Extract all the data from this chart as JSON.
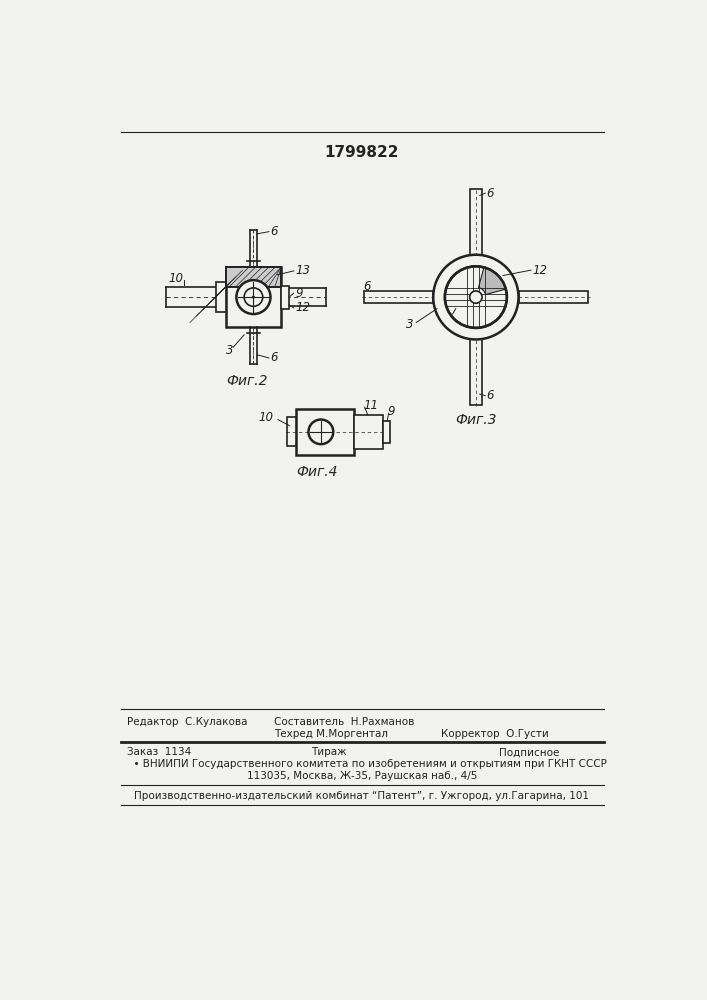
{
  "title": "1799822",
  "bg_color": "#f2f2ee",
  "line_color": "#222222",
  "fig2_label": "Фиг.2",
  "fig3_label": "Фиг.3",
  "fig4_label": "Фиг.4",
  "footer_editor": "Редактор  С.Кулакова",
  "footer_author": "Составитель  Н.Рахманов",
  "footer_tech": "Техред М.Моргентал",
  "footer_corrector": "Корректор  О.Густи",
  "footer_order": "Заказ  1134",
  "footer_tirazh": "Тираж",
  "footer_podp": "Подписное",
  "footer_vniipи": "  • ВНИИПИ Государственного комитета по изобретениям и открытиям при ГКНТ СССР",
  "footer_address": "113035, Москва, Ж-35, Раушская наб., 4/5",
  "footer_factory": "Производственно-издательский комбинат “Патент”, г. Ужгород, ул.Гагарина, 101"
}
